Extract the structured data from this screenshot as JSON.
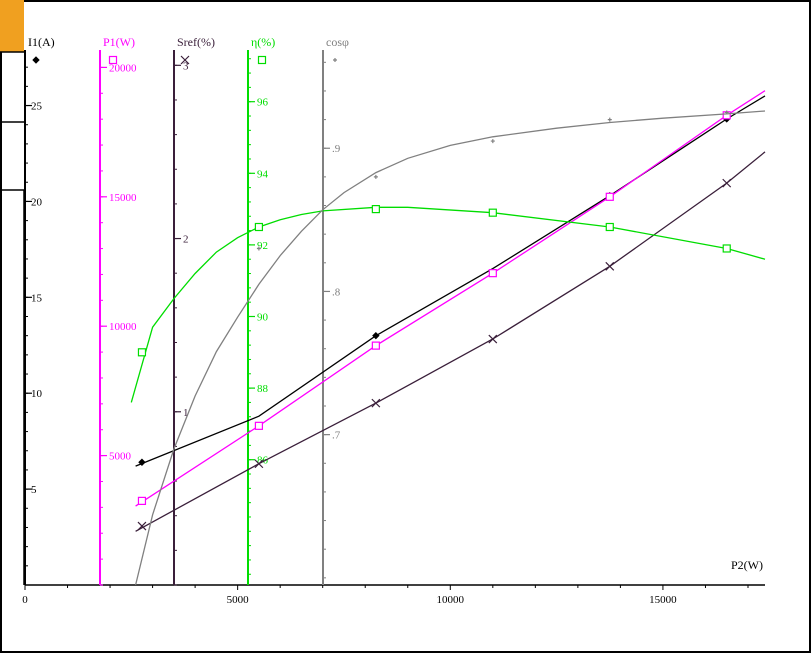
{
  "chart_data": {
    "type": "line",
    "x": {
      "label": "P2(W)",
      "ticks": [
        0,
        5000,
        10000,
        15000
      ],
      "range": [
        0,
        17400
      ]
    },
    "axes": [
      {
        "id": "I1",
        "title": "I1(A)",
        "color": "#000000",
        "range": [
          0,
          28
        ],
        "ticks": [
          5,
          10,
          15,
          20,
          25
        ],
        "tick_labels": [
          "5",
          "10",
          "15",
          "20",
          "25"
        ]
      },
      {
        "id": "P1",
        "title": "P1(W)",
        "color": "#ff00ff",
        "range": [
          0,
          20750
        ],
        "ticks": [
          5000,
          10000,
          15000,
          20000
        ],
        "tick_labels": [
          "5000",
          "10000",
          "15000",
          "20000"
        ]
      },
      {
        "id": "Sref",
        "title": "Sref(%)",
        "color": "#3a1f3a",
        "range": [
          0,
          3.1
        ],
        "ticks": [
          1,
          2,
          3
        ],
        "tick_labels": [
          "1",
          "2",
          "3"
        ]
      },
      {
        "id": "eta",
        "title": "η(%)",
        "color": "#00dd00",
        "range": [
          82.5,
          97.5
        ],
        "ticks": [
          86,
          88,
          90,
          92,
          94,
          96
        ],
        "tick_labels": [
          "86",
          "88",
          "90",
          "92",
          "94",
          "96"
        ]
      },
      {
        "id": "cosphi",
        "title": "cosφ",
        "color": "#808080",
        "range": [
          0.595,
          0.97
        ],
        "ticks": [
          0.7,
          0.8,
          0.9
        ],
        "tick_labels": [
          ".7",
          ".8",
          ".9"
        ]
      }
    ],
    "series": [
      {
        "axis": "I1",
        "marker": "diamond",
        "color": "#000000",
        "x": [
          2750,
          8250,
          13750,
          16500
        ],
        "y": [
          6.4,
          13.0,
          20.3,
          24.3
        ],
        "curve_x": [
          2600,
          5500,
          8250,
          11000,
          13750,
          16500,
          17400
        ],
        "curve_y": [
          6.2,
          8.8,
          13.0,
          16.5,
          20.3,
          24.3,
          25.5
        ]
      },
      {
        "axis": "P1",
        "marker": "square",
        "color": "#ff00ff",
        "x": [
          2750,
          5500,
          8250,
          11000,
          13750,
          16500
        ],
        "y": [
          3250,
          6150,
          9250,
          12050,
          15000,
          18150
        ],
        "curve_x": [
          2600,
          5500,
          8250,
          11000,
          13750,
          16500,
          17400
        ],
        "curve_y": [
          3050,
          6150,
          9250,
          12050,
          15000,
          18150,
          19100
        ]
      },
      {
        "axis": "Sref",
        "marker": "cross",
        "color": "#3a1f3a",
        "x": [
          2750,
          5500,
          8250,
          11000,
          13750,
          16500
        ],
        "y": [
          0.34,
          0.7,
          1.05,
          1.42,
          1.84,
          2.32
        ],
        "curve_x": [
          2600,
          5500,
          8250,
          11000,
          13750,
          16500,
          17400
        ],
        "curve_y": [
          0.31,
          0.7,
          1.05,
          1.42,
          1.84,
          2.32,
          2.5
        ]
      },
      {
        "axis": "eta",
        "marker": "square",
        "color": "#00dd00",
        "x": [
          2750,
          5500,
          8250,
          11000,
          13750,
          16500
        ],
        "y": [
          89.0,
          92.5,
          93.0,
          92.9,
          92.5,
          91.9
        ],
        "curve_x": [
          2500,
          3000,
          3500,
          4000,
          4500,
          5000,
          5500,
          6000,
          6500,
          7000,
          8250,
          9000,
          11000,
          13750,
          16500,
          17400
        ],
        "curve_y": [
          87.6,
          89.7,
          90.5,
          91.2,
          91.8,
          92.2,
          92.5,
          92.7,
          92.85,
          92.95,
          93.05,
          93.05,
          92.9,
          92.5,
          91.9,
          91.6
        ]
      },
      {
        "axis": "cosphi",
        "marker": "star",
        "color": "#808080",
        "x": [
          5500,
          8250,
          11000,
          13750,
          16500
        ],
        "y": [
          0.83,
          0.88,
          0.905,
          0.92,
          0.925
        ],
        "curve_x": [
          2600,
          3000,
          3500,
          4000,
          4500,
          5000,
          5500,
          6000,
          6500,
          7000,
          7500,
          8250,
          9000,
          10000,
          11000,
          12500,
          13750,
          15000,
          16500,
          17400
        ],
        "curve_y": [
          0.595,
          0.644,
          0.69,
          0.727,
          0.758,
          0.782,
          0.805,
          0.825,
          0.842,
          0.857,
          0.869,
          0.883,
          0.893,
          0.902,
          0.908,
          0.914,
          0.918,
          0.921,
          0.924,
          0.926
        ]
      }
    ]
  }
}
